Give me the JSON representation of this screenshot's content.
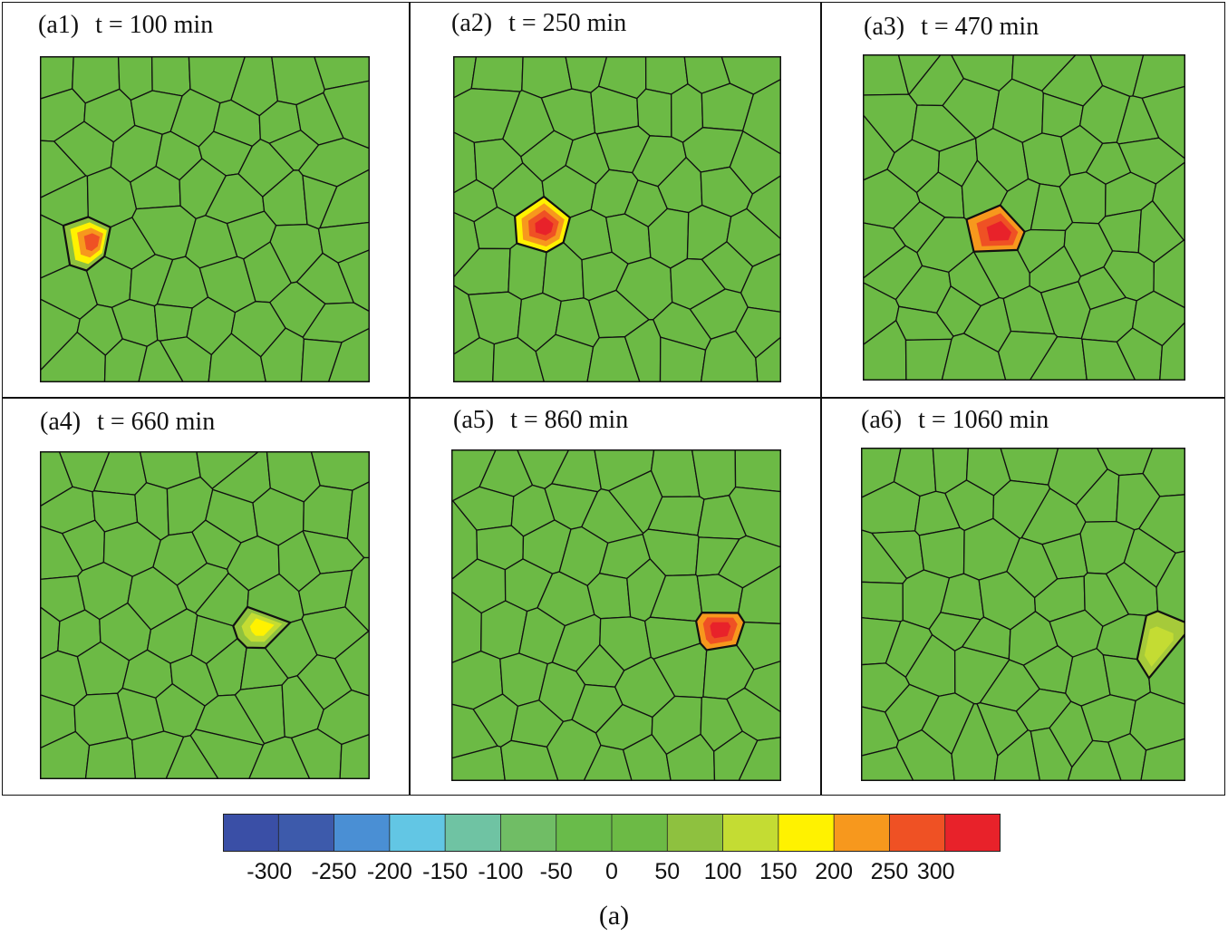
{
  "panels": [
    {
      "tag": "(a1)",
      "time": "t = 100 min"
    },
    {
      "tag": "(a2)",
      "time": "t = 250 min"
    },
    {
      "tag": "(a3)",
      "time": "t = 470 min"
    },
    {
      "tag": "(a4)",
      "time": "t = 660 min"
    },
    {
      "tag": "(a5)",
      "time": "t = 860 min"
    },
    {
      "tag": "(a6)",
      "time": "t = 1060 min"
    }
  ],
  "colorbar": {
    "ticks": [
      "-300",
      "-250",
      "-200",
      "-150",
      "-100",
      "-50",
      "0",
      "50",
      "100",
      "150",
      "200",
      "250",
      "300"
    ],
    "colors": [
      "#3a4fa6",
      "#3d5aab",
      "#4a8fd4",
      "#62c6e4",
      "#6fc3a3",
      "#70bd65",
      "#69bb4a",
      "#6cba45",
      "#8ec13f",
      "#c4dc33",
      "#fff200",
      "#f7981d",
      "#ef5124",
      "#e8222a"
    ]
  },
  "mesh_fill": "#6cba45",
  "caption": "(a)"
}
